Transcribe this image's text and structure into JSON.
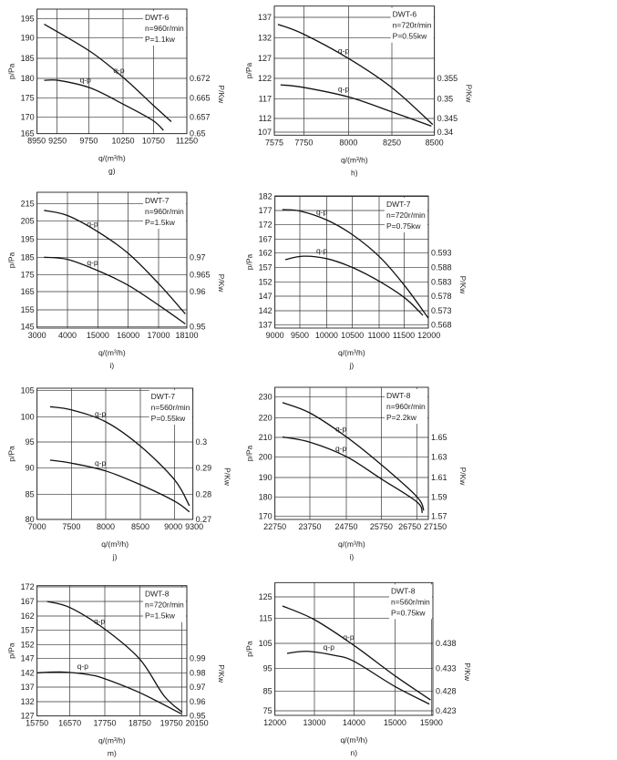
{
  "chart_data": [
    {
      "type": "line",
      "caption": "g)",
      "xlabel": "q/(m³/h)",
      "ylabel": "p/Pa",
      "y2label": "P/Kw",
      "legend": [
        "DWT-6",
        "n=960r/min",
        "P=1.1kw"
      ],
      "xticks": [
        8950,
        9250,
        9750,
        10250,
        10750,
        11250
      ],
      "yticks": [
        165,
        170,
        175,
        180,
        185,
        190,
        195
      ],
      "y2ticks": [
        {
          "value": 0.65,
          "at": 165
        },
        {
          "value": 0.657,
          "at": 170
        },
        {
          "value": 0.665,
          "at": 175
        },
        {
          "value": 0.672,
          "at": 180
        }
      ],
      "grid": true,
      "series": [
        {
          "name": "q-p",
          "axis": "left",
          "x": [
            9057,
            9780,
            10270,
            10737,
            11017
          ],
          "y": [
            193.6,
            186.6,
            180,
            173.2,
            168.6
          ]
        },
        {
          "name": "q-p",
          "axis": "right",
          "x": [
            9057,
            9290,
            9780,
            10270,
            10737,
            10900
          ],
          "y": [
            0.6713,
            0.6712,
            0.6685,
            0.6621,
            0.6556,
            0.6514
          ]
        }
      ]
    },
    {
      "type": "line",
      "caption": "h)",
      "xlabel": "q/(m³/h)",
      "ylabel": "p/Pa",
      "y2label": "P/Kw",
      "legend": [
        "DWT-6",
        "n=720r/min",
        "P=0.55kw"
      ],
      "xticks": [
        7575,
        7750,
        8000,
        8250,
        8500
      ],
      "yticks": [
        107,
        112,
        117,
        122,
        127,
        132,
        137
      ],
      "y2ticks": [
        {
          "value": 0.34,
          "at": 107
        },
        {
          "value": 0.345,
          "at": 112
        },
        {
          "value": 0.35,
          "at": 117
        },
        {
          "value": 0.355,
          "at": 122
        }
      ],
      "grid": true,
      "series": [
        {
          "name": "q-p",
          "axis": "left",
          "x": [
            7596,
            7745,
            8003,
            8254,
            8490
          ],
          "y": [
            135.3,
            133.0,
            126.9,
            119.6,
            109.8
          ]
        },
        {
          "name": "q-p",
          "axis": "right",
          "x": [
            7612,
            7745,
            8003,
            8254,
            8482
          ],
          "y": [
            0.3534,
            0.3528,
            0.3504,
            0.3466,
            0.3422
          ]
        }
      ]
    },
    {
      "type": "line",
      "caption": "i)",
      "xlabel": "q/(m³/h)",
      "ylabel": "p/Pa",
      "y2label": "P/Kw",
      "legend": [
        "DWT-7",
        "n=960r/min",
        "P=1.5kw"
      ],
      "xticks": [
        3000,
        4000,
        15000,
        16000,
        17000,
        18100
      ],
      "yticks": [
        145,
        155,
        165,
        175,
        185,
        195,
        205,
        215
      ],
      "y2ticks": [
        {
          "value": 0.95,
          "at": 145
        },
        {
          "value": 0.96,
          "at": 165
        },
        {
          "value": 0.965,
          "at": 175
        },
        {
          "value": 0.97,
          "at": 185
        }
      ],
      "grid": true,
      "series": [
        {
          "name": "q-p",
          "axis": "left",
          "x": [
            3230,
            4000,
            15000,
            16000,
            17000,
            18041
          ],
          "y": [
            211.1,
            208.2,
            199.2,
            187.2,
            169.8,
            152.6
          ]
        },
        {
          "name": "q-p",
          "axis": "right",
          "x": [
            3230,
            4000,
            15000,
            16000,
            17000,
            18041
          ],
          "y": [
            0.97,
            0.9694,
            0.9662,
            0.9619,
            0.9563,
            0.9508
          ]
        }
      ]
    },
    {
      "type": "line",
      "caption": "j)",
      "xlabel": "q/(m³/h)",
      "ylabel": "p/Pa",
      "y2label": "P/Kw",
      "legend": [
        "DWT-7",
        "n=720r/min",
        "P=0.75kw"
      ],
      "xticks": [
        9000,
        9500,
        10000,
        10500,
        11000,
        11500,
        12000
      ],
      "yticks": [
        137,
        142,
        147,
        152,
        157,
        162,
        167,
        172,
        177,
        182
      ],
      "y2ticks": [
        {
          "value": 0.568,
          "at": 137
        },
        {
          "value": 0.573,
          "at": 142
        },
        {
          "value": 0.578,
          "at": 147
        },
        {
          "value": 0.583,
          "at": 152
        },
        {
          "value": 0.588,
          "at": 157
        },
        {
          "value": 0.593,
          "at": 162
        }
      ],
      "grid": true,
      "series": [
        {
          "name": "q-p",
          "axis": "left",
          "x": [
            9149,
            9506,
            10012,
            10518,
            11024,
            11530,
            12000
          ],
          "y": [
            177.3,
            176.8,
            173.6,
            168.3,
            160.4,
            150.3,
            139.4
          ]
        },
        {
          "name": "q-p",
          "axis": "right",
          "x": [
            9208,
            9565,
            10012,
            10518,
            11024,
            11530,
            11887
          ],
          "y": [
            0.5907,
            0.5919,
            0.591,
            0.5878,
            0.583,
            0.5772,
            0.5714
          ]
        }
      ]
    },
    {
      "type": "line",
      "caption": "j)",
      "xlabel": "q/(m³/h)",
      "ylabel": "p/Pa",
      "y2label": "P/Kw",
      "legend": [
        "DWT-7",
        "n=560r/min",
        "P=0.55kw"
      ],
      "xticks": [
        7000,
        7500,
        8000,
        8500,
        9000,
        9300
      ],
      "yticks": [
        80,
        85,
        90,
        95,
        100,
        105
      ],
      "y2ticks": [
        {
          "value": 0.27,
          "at": 80
        },
        {
          "value": 0.28,
          "at": 85
        },
        {
          "value": 0.29,
          "at": 90
        },
        {
          "value": 0.3,
          "at": 95
        }
      ],
      "grid": true,
      "series": [
        {
          "name": "q-p",
          "axis": "left",
          "x": [
            7190,
            7500,
            8000,
            8500,
            9000,
            9242
          ],
          "y": [
            101.9,
            101.3,
            99,
            94.2,
            87.7,
            82.7
          ]
        },
        {
          "name": "q-p",
          "axis": "right",
          "x": [
            7190,
            7500,
            8000,
            8500,
            9000,
            9242
          ],
          "y": [
            0.293,
            0.2918,
            0.2888,
            0.2836,
            0.2772,
            0.273
          ]
        }
      ]
    },
    {
      "type": "line",
      "caption": "i)",
      "xlabel": "q/(m³/h)",
      "ylabel": "p/Pa",
      "y2label": "P/Kw",
      "legend": [
        "DWT-8",
        "n=960r/min",
        "P=2.2kw"
      ],
      "xticks": [
        22750,
        23750,
        24750,
        25750,
        26750,
        27150
      ],
      "yticks": [
        170,
        180,
        190,
        200,
        210,
        220,
        230
      ],
      "y2ticks": [
        {
          "value": 1.57,
          "at": 170
        },
        {
          "value": 1.59,
          "at": 180
        },
        {
          "value": 1.61,
          "at": 190
        },
        {
          "value": 1.63,
          "at": 200
        },
        {
          "value": 1.65,
          "at": 210
        }
      ],
      "grid": true,
      "series": [
        {
          "name": "q-p",
          "axis": "left",
          "x": [
            22967,
            23750,
            24750,
            25750,
            26750,
            26992
          ],
          "y": [
            227.3,
            222.3,
            210.3,
            196.3,
            180.3,
            173.1
          ]
        },
        {
          "name": "q-p",
          "axis": "right",
          "x": [
            22967,
            23750,
            24750,
            25750,
            26750,
            26939
          ],
          "y": [
            1.6504,
            1.6452,
            1.6306,
            1.6086,
            1.5852,
            1.5736
          ]
        }
      ]
    },
    {
      "type": "line",
      "caption": "m)",
      "xlabel": "q/(m³/h)",
      "ylabel": "p/Pa",
      "y2label": "P/Kw",
      "legend": [
        "DWT-8",
        "n=720r/min",
        "P=1.5kw"
      ],
      "xticks": [
        15750,
        16570,
        17750,
        18750,
        19750,
        20150
      ],
      "yticks": [
        127,
        132,
        137,
        142,
        147,
        152,
        157,
        162,
        167,
        172
      ],
      "y2ticks": [
        {
          "value": 0.95,
          "at": 127
        },
        {
          "value": 0.96,
          "at": 132
        },
        {
          "value": 0.97,
          "at": 137
        },
        {
          "value": 0.98,
          "at": 142
        },
        {
          "value": 0.99,
          "at": 147
        }
      ],
      "grid": true,
      "series": [
        {
          "name": "q-p",
          "axis": "left",
          "x": [
            16000,
            16570,
            17750,
            18750,
            19330,
            19797
          ],
          "y": [
            167,
            164.9,
            157.4,
            146.8,
            134,
            128.3
          ]
        },
        {
          "name": "q-p",
          "axis": "right",
          "x": [
            15750,
            16342,
            17186,
            17750,
            18750,
            19750
          ],
          "y": [
            0.98,
            0.9806,
            0.9788,
            0.9758,
            0.9662,
            0.9514
          ]
        }
      ]
    },
    {
      "type": "line",
      "caption": "n)",
      "xlabel": "q/(m³/h)",
      "ylabel": "p/Pa",
      "y2label": "P/Kw",
      "legend": [
        "DWT-8",
        "n=560r/min",
        "P=0.75kw"
      ],
      "xticks": [
        12000,
        13000,
        14000,
        15000,
        15900
      ],
      "yticks": [
        75,
        85,
        95,
        105,
        115,
        125
      ],
      "y2ticks": [
        {
          "value": 0.423,
          "at": 75
        },
        {
          "value": 0.428,
          "at": 85
        },
        {
          "value": 0.433,
          "at": 95
        },
        {
          "value": 0.438,
          "at": 105
        }
      ],
      "grid": true,
      "series": [
        {
          "name": "q-p",
          "axis": "left",
          "x": [
            12192,
            13000,
            14000,
            15000,
            15880
          ],
          "y": [
            120.7,
            114.4,
            104.2,
            91.7,
            80.5
          ]
        },
        {
          "name": "q-p",
          "axis": "right",
          "x": [
            12308,
            12808,
            13500,
            14000,
            15000,
            15850
          ],
          "y": [
            0.436,
            0.4364,
            0.4356,
            0.4344,
            0.429,
            0.4247
          ]
        }
      ]
    }
  ]
}
